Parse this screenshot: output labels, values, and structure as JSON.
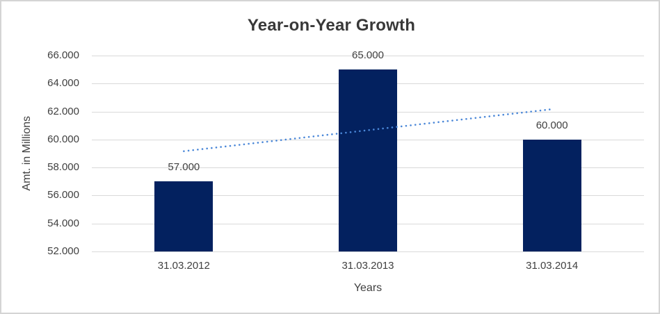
{
  "frame": {
    "border_color": "#d4d4d4",
    "background": "#ffffff"
  },
  "chart_data": {
    "type": "bar",
    "title": "Year-on-Year Growth",
    "categories": [
      "31.03.2012",
      "31.03.2013",
      "31.03.2014"
    ],
    "values": [
      57000,
      65000,
      60000
    ],
    "data_labels": [
      "57.000",
      "65.000",
      "60.000"
    ],
    "xlabel": "Years",
    "ylabel": "Amt. in Millions",
    "ylim": [
      52000,
      66000
    ],
    "ytick_step": 2000,
    "ytick_labels": [
      "52.000",
      "54.000",
      "56.000",
      "58.000",
      "60.000",
      "62.000",
      "64.000",
      "66.000"
    ],
    "grid": true,
    "legend": "none",
    "colors": {
      "bar": "#03215f",
      "trendline": "#4a87d8",
      "gridline": "#d9d9d9",
      "title_text": "#383838",
      "label_text": "#404040"
    },
    "trendline": {
      "type": "linear",
      "style": "dotted",
      "start_value": 59167,
      "end_value": 62167
    }
  }
}
